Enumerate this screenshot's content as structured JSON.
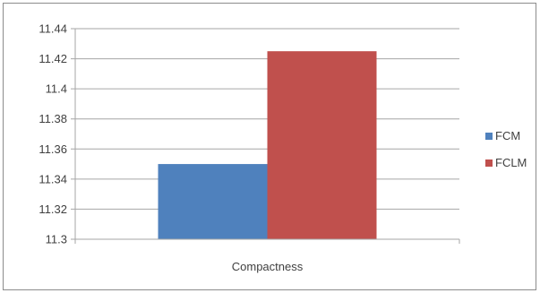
{
  "chart_data": {
    "type": "bar",
    "categories": [
      "Compactness"
    ],
    "series": [
      {
        "name": "FCM",
        "values": [
          11.35
        ],
        "color": "#4f81bd"
      },
      {
        "name": "FCLM",
        "values": [
          11.425
        ],
        "color": "#c0504d"
      }
    ],
    "ylim": [
      11.3,
      11.44
    ],
    "yticks": [
      "11.44",
      "11.42",
      "11.4",
      "11.38",
      "11.36",
      "11.34",
      "11.32",
      "11.3"
    ],
    "grid": true,
    "legend": "right"
  }
}
